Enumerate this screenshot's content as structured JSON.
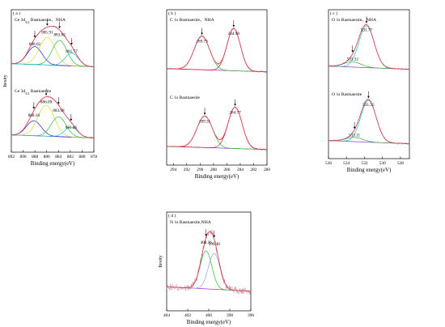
{
  "chart_data": [
    {
      "type": "line",
      "panel": "a",
      "panel_label": "( a )",
      "xlabel": "Binding energy(eV)",
      "ylabel": "Itesity",
      "xlim": [
        892,
        878
      ],
      "xticks": [
        892,
        890,
        888,
        886,
        884,
        882,
        880,
        878
      ],
      "subplots": [
        {
          "label": "Ce 3d",
          "label_sub": "5/2",
          "label_suffix": " Bastnaesite、NHA",
          "peaks": [
            888.02,
            885.91,
            883.82,
            881.77
          ],
          "peak_labels": [
            "888.02",
            "885.91",
            "883.82",
            "881.77"
          ],
          "peak_colors": [
            "#1f1fd6",
            "#d9d936",
            "#2bbf2b",
            "#18c7c7"
          ]
        },
        {
          "label": "Ce 3d",
          "label_sub": "5/2",
          "label_suffix": " Bastnaesite",
          "peaks": [
            888.18,
            886.09,
            883.98,
            881.86
          ],
          "peak_labels": [
            "888.18",
            "886.09",
            "883.98",
            "881.86"
          ],
          "peak_colors": [
            "#1f1fd6",
            "#d9d936",
            "#2bbf2b",
            "#18c7c7"
          ]
        }
      ]
    },
    {
      "type": "line",
      "panel": "b",
      "panel_label": "( b )",
      "xlabel": "Binding energy(eV)",
      "ylabel": "",
      "xlim": [
        295,
        280
      ],
      "xticks": [
        294,
        292,
        290,
        288,
        286,
        284,
        282,
        280
      ],
      "subplots": [
        {
          "label": "C 1s Bastnaesite、NHA",
          "peaks": [
            289.73,
            284.98
          ],
          "peak_labels": [
            "289.73",
            "284.98"
          ],
          "peak_colors": [
            "#2bbf2b",
            "#d02020"
          ]
        },
        {
          "label": "C 1s Bastnaesite",
          "peaks": [
            289.31,
            284.77
          ],
          "peak_labels": [
            "289.31",
            "284.77"
          ],
          "peak_colors": [
            "#2bbf2b",
            "#d02020"
          ]
        }
      ]
    },
    {
      "type": "line",
      "panel": "c",
      "panel_label": "( c )",
      "xlabel": "Binding energy(eV)",
      "ylabel": "",
      "xlim": [
        536,
        527
      ],
      "xticks": [
        536,
        534,
        532,
        530,
        528
      ],
      "subplots": [
        {
          "label": "O 1s Bastnaesite、NHA",
          "peaks": [
            533.32,
            531.77
          ],
          "peak_labels": [
            "533.32",
            "531.77"
          ],
          "peak_colors": [
            "#2bbf2b",
            "#18c7c7"
          ]
        },
        {
          "label": "O 1s Bastnaesite",
          "peaks": [
            533.11,
            531.55
          ],
          "peak_labels": [
            "533.11",
            "531.55"
          ],
          "peak_colors": [
            "#2bbf2b",
            "#18c7c7"
          ]
        }
      ]
    },
    {
      "type": "line",
      "panel": "d",
      "panel_label": "( d )",
      "xlabel": "Binding energy(eV)",
      "ylabel": "Itesity",
      "xlim": [
        404,
        396
      ],
      "xticks": [
        404,
        402,
        400,
        398,
        396
      ],
      "subplots": [
        {
          "label": "N 1s Bastnaesite,NHA",
          "peaks": [
            400.26,
            399.48
          ],
          "peak_labels": [
            "400.26",
            "399.48"
          ],
          "peak_colors": [
            "#2bbf2b",
            "#9b9bdc"
          ]
        }
      ]
    }
  ]
}
